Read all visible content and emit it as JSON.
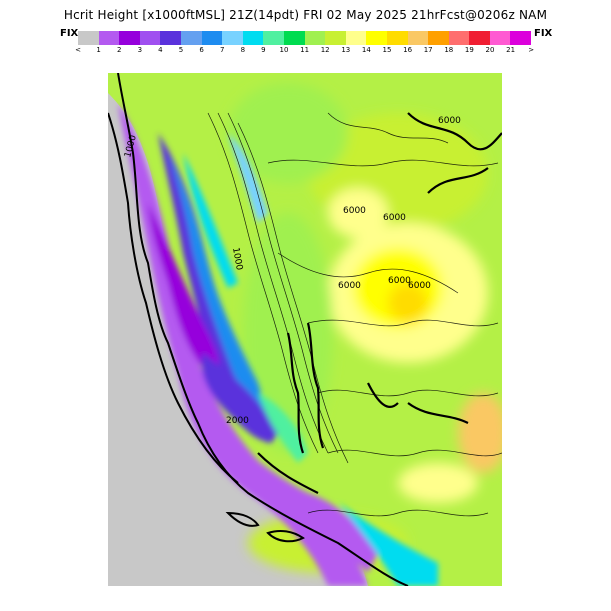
{
  "header": {
    "title": "Hcrit Height  [x1000ftMSL]  21Z(14pdt)  FRI 02 May 2025  21hrFcst@0206z  NAM",
    "fix_left": "FIX",
    "fix_right": "FIX"
  },
  "colorbar": {
    "colors": [
      "#c8c8c8",
      "#b45af0",
      "#9600dc",
      "#a050f0",
      "#5a32dc",
      "#64a0f0",
      "#1e8cf0",
      "#78d2ff",
      "#00dcf0",
      "#50f0a0",
      "#00dc50",
      "#a0f050",
      "#c8f032",
      "#ffff8c",
      "#ffff00",
      "#ffdc00",
      "#fac864",
      "#ffa000",
      "#ff6e6e",
      "#f01e32",
      "#ff5ad2",
      "#dc00dc"
    ],
    "ticks": [
      "<",
      "1",
      "2",
      "3",
      "4",
      "5",
      "6",
      "7",
      "8",
      "9",
      "10",
      "11",
      "12",
      "13",
      "14",
      "15",
      "16",
      "17",
      "18",
      "19",
      "20",
      "21",
      ">"
    ]
  },
  "map": {
    "contour_labels": [
      "6000",
      "6000",
      "6000",
      "6000",
      "6000",
      "6000",
      "1000",
      "1000",
      "2000"
    ]
  }
}
